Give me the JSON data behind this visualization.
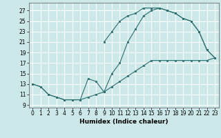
{
  "xlabel": "Humidex (Indice chaleur)",
  "bg_color": "#cce8e8",
  "grid_color": "#ffffff",
  "line_color": "#2a6e6e",
  "xlim": [
    -0.5,
    23.5
  ],
  "ylim": [
    8.5,
    28.5
  ],
  "xticks": [
    0,
    1,
    2,
    3,
    4,
    5,
    6,
    7,
    8,
    9,
    10,
    11,
    12,
    13,
    14,
    15,
    16,
    17,
    18,
    19,
    20,
    21,
    22,
    23
  ],
  "yticks": [
    9,
    11,
    13,
    15,
    17,
    19,
    21,
    23,
    25,
    27
  ],
  "curve1_x": [
    0,
    1,
    2,
    3,
    4,
    5,
    6,
    7,
    8,
    9,
    10,
    11,
    12,
    13,
    14,
    15,
    16,
    17,
    18,
    19,
    20,
    21,
    22,
    23
  ],
  "curve1_y": [
    13,
    12.5,
    11,
    10.5,
    10,
    10,
    10,
    10.5,
    11,
    11.5,
    12.5,
    13.5,
    14.5,
    15.5,
    16.5,
    17.5,
    17.5,
    17.5,
    17.5,
    17.5,
    17.5,
    17.5,
    17.5,
    18
  ],
  "curve2_x": [
    0,
    1,
    2,
    3,
    4,
    5,
    6,
    7,
    8,
    9,
    10,
    11,
    12,
    13,
    14,
    15,
    16,
    17,
    18,
    19,
    20,
    21,
    22,
    23
  ],
  "curve2_y": [
    13,
    12.5,
    11,
    10.5,
    10,
    10,
    10,
    14,
    13.5,
    11.5,
    15,
    17,
    21,
    23.5,
    26,
    27,
    27.5,
    27,
    26.5,
    25.5,
    25,
    23,
    19.5,
    18
  ],
  "curve3_x": [
    9,
    10,
    11,
    12,
    13,
    14,
    15,
    16,
    17,
    18,
    19,
    20,
    21,
    22,
    23
  ],
  "curve3_y": [
    21,
    23,
    25,
    26,
    26.5,
    27.5,
    27.5,
    27.5,
    27,
    26.5,
    25.5,
    25,
    23,
    19.5,
    18
  ]
}
